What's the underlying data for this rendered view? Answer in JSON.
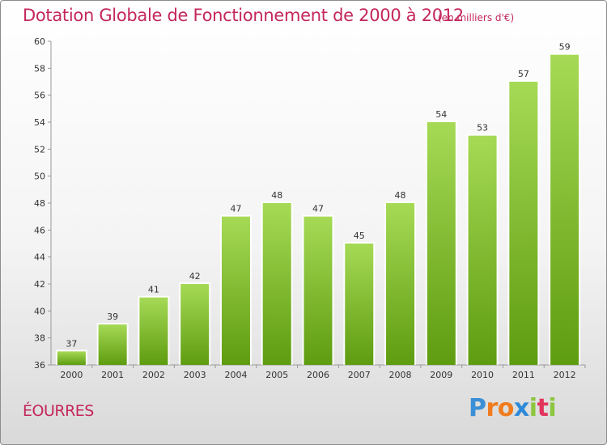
{
  "header": {
    "title": "Dotation Globale de Fonctionnement de 2000 à 2012",
    "unit": "(en milliers d'€)"
  },
  "footer": {
    "commune": "ÉOURRES",
    "logo": {
      "letters": [
        "P",
        "r",
        "o",
        "x",
        "i",
        "t",
        "i"
      ],
      "colors": [
        "#3a8fd6",
        "#f07c1e",
        "#f07c1e",
        "#2e8ad8",
        "#8cc63f",
        "#e2345c",
        "#8cc63f"
      ]
    }
  },
  "colors": {
    "title": "#c4275a",
    "bar_light": "#9fd64e",
    "bar_dark": "#5e9c10"
  },
  "chart_data": {
    "type": "bar",
    "title": "Dotation Globale de Fonctionnement de 2000 à 2012",
    "subtitle": "(en milliers d'€)",
    "xlabel": "",
    "ylabel": "",
    "categories": [
      "2000",
      "2001",
      "2002",
      "2003",
      "2004",
      "2005",
      "2006",
      "2007",
      "2008",
      "2009",
      "2010",
      "2011",
      "2012"
    ],
    "values": [
      37,
      39,
      41,
      42,
      47,
      48,
      47,
      45,
      48,
      54,
      53,
      57,
      59
    ],
    "ylim": [
      36,
      60
    ],
    "yticks": [
      36,
      38,
      40,
      42,
      44,
      46,
      48,
      50,
      52,
      54,
      56,
      58,
      60
    ],
    "grid": false,
    "legend": "none"
  }
}
